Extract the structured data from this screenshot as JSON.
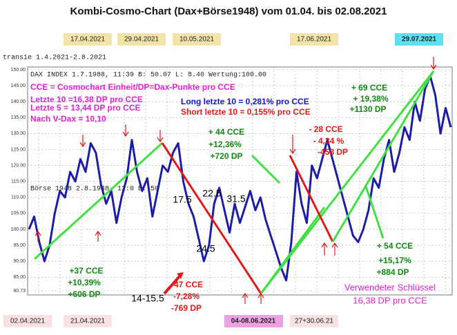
{
  "chart_data": {
    "type": "line",
    "title": "Kombi-Cosmo-Chart (Dax+Börse1948) vom 01.04. bis 02.08.2021",
    "ylim": [
      80.73,
      150
    ],
    "yticks": [
      {
        "value": 80.73,
        "label": "80.73"
      },
      {
        "value": 85,
        "label": "85.00"
      },
      {
        "value": 90,
        "label": "90.00"
      },
      {
        "value": 95,
        "label": "95.00"
      },
      {
        "value": 100,
        "label": "100.00"
      },
      {
        "value": 105,
        "label": "105.00"
      },
      {
        "value": 110,
        "label": "110.00"
      },
      {
        "value": 115,
        "label": "115.00"
      },
      {
        "value": 120,
        "label": "120.00"
      },
      {
        "value": 125,
        "label": "125.00"
      },
      {
        "value": 130,
        "label": "130.00"
      },
      {
        "value": 135,
        "label": "135.00"
      },
      {
        "value": 140,
        "label": "140.00"
      },
      {
        "value": 145,
        "label": "145.00"
      },
      {
        "value": 150,
        "label": "150.00"
      }
    ],
    "grid": true,
    "color": "#1c1ca8",
    "values": [
      100,
      104,
      96,
      90,
      95,
      105,
      112,
      110,
      118,
      115,
      122,
      118,
      127,
      124,
      114,
      108,
      112,
      102,
      110,
      116,
      128,
      118,
      112,
      116,
      104,
      112,
      120,
      118,
      124,
      127,
      115,
      108,
      104,
      97,
      90,
      95,
      108,
      113,
      106,
      99,
      108,
      102,
      107,
      112,
      106,
      110,
      103,
      98,
      93,
      88,
      84,
      96,
      118,
      108,
      102,
      120,
      116,
      122,
      128,
      122,
      116,
      110,
      104,
      98,
      96,
      100,
      106,
      116,
      113,
      122,
      128,
      118,
      124,
      132,
      128,
      140,
      134,
      144,
      148,
      142,
      130,
      138,
      132
    ],
    "annotations": [
      "17.04.2021",
      "29.04.2021",
      "10.05.2021",
      "17.06.2021",
      "29.07.2021",
      "02.04.2021",
      "21.04.2021",
      "04-08.06.2021",
      "27+30.06.21",
      "transie 1.4.2021-2.8.2021",
      "DAX INDEX 1.7.1988, 11:39 B: 50.07 L: 8.40 Wertung:100.00",
      "Börse 1948 2.8.1948, 12:0 B: 50",
      "CCE = Cosmochart Einheit/DP=Dax-Punkte pro CCE",
      "Letzte 10 =16,38 DP pro CCE",
      "Letzte 5 = 13,44 DP pro CCE",
      "Nach V-Dax = 10,10",
      "Long letzte 10 = 0,281% pro CCE",
      "Short letzte 10 = 0,155% pro CCE",
      "+ 69 CCE",
      "+ 19,38%",
      "+1130 DP",
      "+ 44 CCE",
      "+12,36%",
      "+720 DP",
      "- 28 CCE",
      "- 4,34 %",
      "-458 DP",
      "17.5",
      "22.5",
      "31.5",
      "24.5",
      "14-15.5",
      "-47 CCE",
      "-7,28%",
      "-769 DP",
      "+37 CCE",
      "+10,39%",
      "+606 DP",
      "+ 54 CCE",
      "+15,17%",
      "+884 DP",
      "Verwendeter Schlüssel",
      "16,38 DP pro CCE"
    ]
  }
}
